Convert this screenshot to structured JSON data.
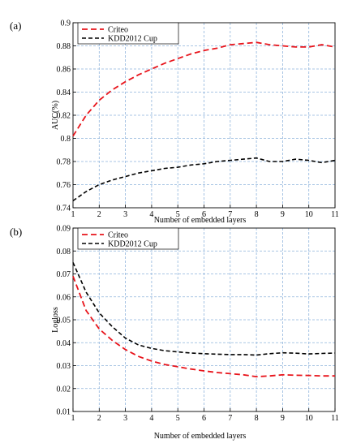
{
  "chart_data": [
    {
      "type": "line",
      "panel_label": "(a)",
      "xlabel": "Number of embedded layers",
      "ylabel": "AUC(%)",
      "xlim": [
        1,
        11
      ],
      "ylim": [
        0.74,
        0.9
      ],
      "xticks": [
        "1",
        "2",
        "3",
        "4",
        "5",
        "6",
        "7",
        "8",
        "9",
        "10",
        "11"
      ],
      "yticks": [
        "0.74",
        "0.76",
        "0.78",
        "0.8",
        "0.82",
        "0.84",
        "0.86",
        "0.88",
        "0.9"
      ],
      "grid": true,
      "legend_position": "top-left",
      "series": [
        {
          "name": "Criteo",
          "color": "#e8141b",
          "dash": "dashed",
          "x": [
            1,
            1.5,
            2,
            2.5,
            3,
            3.5,
            4,
            4.5,
            5,
            5.5,
            6,
            6.5,
            7,
            7.5,
            8,
            8.5,
            9,
            9.5,
            10,
            10.5,
            11
          ],
          "values": [
            0.802,
            0.82,
            0.833,
            0.842,
            0.849,
            0.855,
            0.86,
            0.865,
            0.869,
            0.873,
            0.876,
            0.878,
            0.881,
            0.882,
            0.883,
            0.881,
            0.88,
            0.879,
            0.879,
            0.881,
            0.879
          ]
        },
        {
          "name": "KDD2012 Cup",
          "color": "#000000",
          "dash": "dashed",
          "x": [
            1,
            1.5,
            2,
            2.5,
            3,
            3.5,
            4,
            4.5,
            5,
            5.5,
            6,
            6.5,
            7,
            7.5,
            8,
            8.5,
            9,
            9.5,
            10,
            10.5,
            11
          ],
          "values": [
            0.746,
            0.754,
            0.76,
            0.764,
            0.767,
            0.77,
            0.772,
            0.774,
            0.775,
            0.777,
            0.778,
            0.78,
            0.781,
            0.782,
            0.783,
            0.78,
            0.78,
            0.782,
            0.781,
            0.779,
            0.781
          ]
        }
      ]
    },
    {
      "type": "line",
      "panel_label": "(b)",
      "xlabel": "Number of embedded layers",
      "ylabel": "Logloss",
      "xlim": [
        1,
        11
      ],
      "ylim": [
        0.01,
        0.09
      ],
      "xticks": [
        "1",
        "2",
        "3",
        "4",
        "5",
        "6",
        "7",
        "8",
        "9",
        "10",
        "11"
      ],
      "yticks": [
        "0.01",
        "0.02",
        "0.03",
        "0.04",
        "0.05",
        "0.06",
        "0.07",
        "0.08",
        "0.09"
      ],
      "grid": true,
      "legend_position": "top-left",
      "series": [
        {
          "name": "Criteo",
          "color": "#e8141b",
          "dash": "dashed",
          "x": [
            1,
            1.5,
            2,
            2.5,
            3,
            3.5,
            4,
            4.5,
            5,
            5.5,
            6,
            6.5,
            7,
            7.5,
            8,
            8.5,
            9,
            9.5,
            10,
            10.5,
            11
          ],
          "values": [
            0.069,
            0.054,
            0.046,
            0.041,
            0.037,
            0.034,
            0.032,
            0.0305,
            0.0295,
            0.0285,
            0.0277,
            0.027,
            0.0265,
            0.026,
            0.0252,
            0.0255,
            0.026,
            0.0258,
            0.0257,
            0.0255,
            0.0255
          ]
        },
        {
          "name": "KDD2012 Cup",
          "color": "#000000",
          "dash": "dashed",
          "x": [
            1,
            1.5,
            2,
            2.5,
            3,
            3.5,
            4,
            4.5,
            5,
            5.5,
            6,
            6.5,
            7,
            7.5,
            8,
            8.5,
            9,
            9.5,
            10,
            10.5,
            11
          ],
          "values": [
            0.075,
            0.062,
            0.053,
            0.047,
            0.042,
            0.039,
            0.0375,
            0.0365,
            0.036,
            0.0355,
            0.0352,
            0.035,
            0.0348,
            0.0348,
            0.0346,
            0.0352,
            0.0356,
            0.0354,
            0.0351,
            0.0353,
            0.0355
          ]
        }
      ]
    }
  ]
}
